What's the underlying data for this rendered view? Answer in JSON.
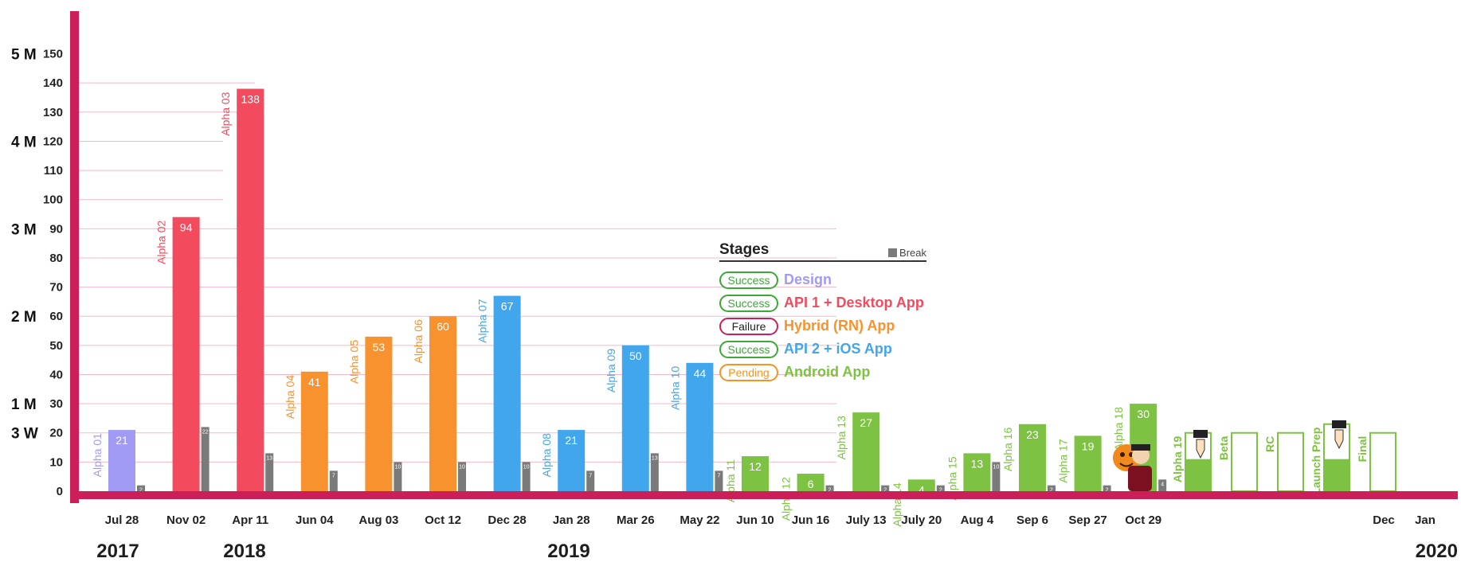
{
  "chart_data": {
    "type": "bar",
    "title": "",
    "xlabel": "",
    "ylabel": "",
    "ylim": [
      0,
      155
    ],
    "y_ticks": [
      0,
      10,
      20,
      30,
      40,
      50,
      60,
      70,
      80,
      90,
      100,
      110,
      120,
      130,
      140,
      150
    ],
    "y_magnitudes": [
      {
        "label": "3 W",
        "value": 20
      },
      {
        "label": "1 M",
        "value": 30
      },
      {
        "label": "2 M",
        "value": 60
      },
      {
        "label": "3 M",
        "value": 90
      },
      {
        "label": "4 M",
        "value": 120
      },
      {
        "label": "5 M",
        "value": 150
      }
    ],
    "years": [
      "2017",
      "2018",
      "2019",
      "2020"
    ],
    "releases": [
      {
        "name": "Alpha 01",
        "date": "Jul 28",
        "value": 21,
        "break": 2,
        "stage": "Design"
      },
      {
        "name": "Alpha 02",
        "date": "Nov 02",
        "value": 94,
        "break": 22,
        "stage": "API 1 + Desktop App"
      },
      {
        "name": "Alpha 03",
        "date": "Apr 11",
        "value": 138,
        "break": 13,
        "stage": "API 1 + Desktop App"
      },
      {
        "name": "Alpha 04",
        "date": "Jun 04",
        "value": 41,
        "break": 7,
        "stage": "Hybrid (RN) App"
      },
      {
        "name": "Alpha 05",
        "date": "Aug 03",
        "value": 53,
        "break": 10,
        "stage": "Hybrid (RN) App"
      },
      {
        "name": "Alpha 06",
        "date": "Oct 12",
        "value": 60,
        "break": 10,
        "stage": "Hybrid (RN) App"
      },
      {
        "name": "Alpha 07",
        "date": "Dec 28",
        "value": 67,
        "break": 10,
        "stage": "API 2 + iOS App"
      },
      {
        "name": "Alpha 08",
        "date": "Jan 28",
        "value": 21,
        "break": 7,
        "stage": "API 2 + iOS App"
      },
      {
        "name": "Alpha 09",
        "date": "Mar 26",
        "value": 50,
        "break": 13,
        "stage": "API 2 + iOS App"
      },
      {
        "name": "Alpha 10",
        "date": "May 22",
        "value": 44,
        "break": 7,
        "stage": "API 2 + iOS App"
      },
      {
        "name": "Alpha 11",
        "date": "Jun 10",
        "value": 12,
        "break": 0,
        "stage": "Android App"
      },
      {
        "name": "Alpha 12",
        "date": "Jun 16",
        "value": 6,
        "break": 2,
        "stage": "Android App"
      },
      {
        "name": "Alpha 13",
        "date": "July 13",
        "value": 27,
        "break": 2,
        "stage": "Android App"
      },
      {
        "name": "Alpha 14",
        "date": "July 20",
        "value": 4,
        "break": 2,
        "stage": "Android App"
      },
      {
        "name": "Alpha 15",
        "date": "Aug 4",
        "value": 13,
        "break": 10,
        "stage": "Android App"
      },
      {
        "name": "Alpha 16",
        "date": "Sep 6",
        "value": 23,
        "break": 2,
        "stage": "Android App"
      },
      {
        "name": "Alpha 17",
        "date": "Sep 27",
        "value": 19,
        "break": 2,
        "stage": "Android App"
      },
      {
        "name": "Alpha 18",
        "date": "Oct 29",
        "value": 30,
        "break": 4,
        "stage": "Android App"
      }
    ],
    "future": [
      {
        "name": "Alpha 19",
        "value": 20,
        "progress": 11
      },
      {
        "name": "Beta",
        "value": 20,
        "progress": 0
      },
      {
        "name": "RC",
        "value": 20,
        "progress": 0
      },
      {
        "name": "Launch Prep",
        "value": 23,
        "progress": 11
      },
      {
        "name": "Final",
        "value": 20,
        "progress": 0
      }
    ],
    "end_dates": [
      "Dec",
      "Jan"
    ],
    "legend": {
      "title": "Stages",
      "break_label": "Break",
      "items": [
        {
          "status": "Success",
          "name": "Design"
        },
        {
          "status": "Success",
          "name": "API 1 + Desktop App"
        },
        {
          "status": "Failure",
          "name": "Hybrid (RN) App"
        },
        {
          "status": "Success",
          "name": "API 2 + iOS App"
        },
        {
          "status": "Pending",
          "name": "Android App"
        }
      ]
    },
    "colors": {
      "axis": "#cc1f5a",
      "grid": "#f3b9c9",
      "break": "#7a7a7a",
      "success": "#3aa935",
      "failure": "#cc1f5a",
      "pending": "#f7931e",
      "stages": {
        "Design": "#a29bf5",
        "API 1 + Desktop App": "#f34b5e",
        "Hybrid (RN) App": "#f7922f",
        "API 2 + iOS App": "#42a6ec",
        "Android App": "#7dc242"
      }
    }
  }
}
